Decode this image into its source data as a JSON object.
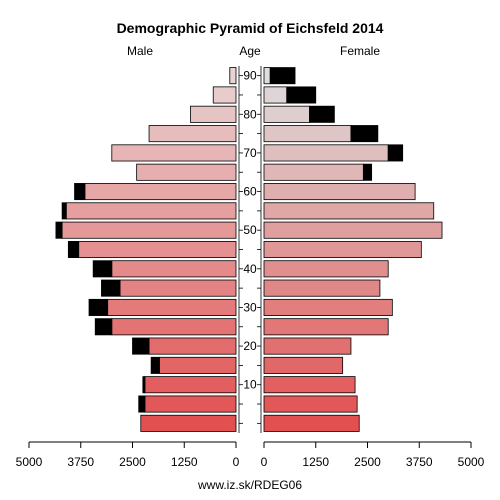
{
  "chart_data": {
    "type": "bar",
    "title": "Demographic Pyramid of Eichsfeld 2014",
    "left_label": "Male",
    "center_label": "Age",
    "right_label": "Female",
    "footer": "www.iz.sk/RDEG06",
    "x_ticks": [
      0,
      1250,
      2500,
      3750,
      5000
    ],
    "x_tick_labels_left": [
      "5000",
      "3750",
      "2500",
      "1250",
      "0"
    ],
    "x_tick_labels_right": [
      "0",
      "1250",
      "2500",
      "3750",
      "5000"
    ],
    "xlim": [
      0,
      5000
    ],
    "age_groups": [
      "0-4",
      "5-9",
      "10-14",
      "15-19",
      "20-24",
      "25-29",
      "30-34",
      "35-39",
      "40-44",
      "45-49",
      "50-54",
      "55-59",
      "60-64",
      "65-69",
      "70-74",
      "75-79",
      "80-84",
      "85-89",
      "90+"
    ],
    "age_tick_values": [
      10,
      20,
      30,
      40,
      50,
      60,
      70,
      80,
      90
    ],
    "age_tick_labels": [
      "10",
      "20",
      "30",
      "40",
      "50",
      "60",
      "70",
      "80",
      "90"
    ],
    "series": [
      {
        "name": "Male",
        "values": [
          2300,
          2200,
          2200,
          1850,
          2100,
          3000,
          3100,
          2800,
          3000,
          3800,
          4200,
          4100,
          3650,
          2400,
          3000,
          2100,
          1100,
          550,
          150
        ]
      },
      {
        "name": "Male excess",
        "values": [
          0,
          150,
          50,
          200,
          400,
          400,
          450,
          450,
          450,
          250,
          150,
          100,
          250,
          0,
          0,
          0,
          0,
          0,
          0
        ]
      },
      {
        "name": "Female",
        "values": [
          2300,
          2250,
          2200,
          1900,
          2100,
          3000,
          3100,
          2800,
          3000,
          3800,
          4300,
          4100,
          3650,
          2400,
          3000,
          2100,
          1100,
          550,
          150
        ]
      },
      {
        "name": "Female excess",
        "values": [
          0,
          0,
          0,
          0,
          0,
          0,
          0,
          0,
          0,
          0,
          0,
          0,
          0,
          200,
          350,
          650,
          600,
          700,
          600
        ]
      }
    ]
  }
}
